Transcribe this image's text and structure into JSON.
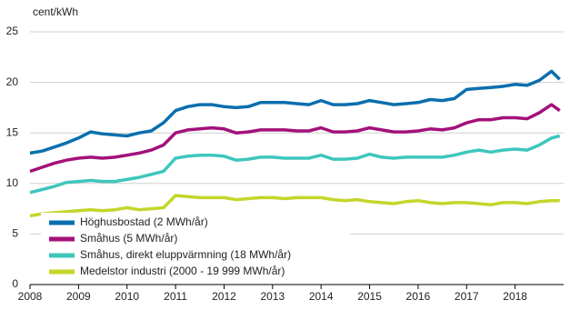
{
  "chart_data": {
    "type": "line",
    "y_label": "cent/kWh",
    "x": [
      2008,
      2008.25,
      2008.5,
      2008.75,
      2009,
      2009.25,
      2009.5,
      2009.75,
      2010,
      2010.25,
      2010.5,
      2010.75,
      2011,
      2011.25,
      2011.5,
      2011.75,
      2012,
      2012.25,
      2012.5,
      2012.75,
      2013,
      2013.25,
      2013.5,
      2013.75,
      2014,
      2014.25,
      2014.5,
      2014.75,
      2015,
      2015.25,
      2015.5,
      2015.75,
      2016,
      2016.25,
      2016.5,
      2016.75,
      2017,
      2017.25,
      2017.5,
      2017.75,
      2018,
      2018.25,
      2018.5,
      2018.75,
      2018.92
    ],
    "series": [
      {
        "name": "Höghusbostad (2 MWh/år)",
        "color": "#0a6fae",
        "values": [
          13.0,
          13.2,
          13.6,
          14.0,
          14.5,
          15.1,
          14.9,
          14.8,
          14.7,
          15.0,
          15.2,
          16.0,
          17.2,
          17.6,
          17.8,
          17.8,
          17.6,
          17.5,
          17.6,
          18.0,
          18.0,
          18.0,
          17.9,
          17.8,
          18.2,
          17.8,
          17.8,
          17.9,
          18.2,
          18.0,
          17.8,
          17.9,
          18.0,
          18.3,
          18.2,
          18.4,
          19.3,
          19.4,
          19.5,
          19.6,
          19.8,
          19.7,
          20.2,
          21.1,
          20.3
        ]
      },
      {
        "name": "Småhus (5 MWh/år)",
        "color": "#a3117a",
        "values": [
          11.2,
          11.6,
          12.0,
          12.3,
          12.5,
          12.6,
          12.5,
          12.6,
          12.8,
          13.0,
          13.3,
          13.8,
          15.0,
          15.3,
          15.4,
          15.5,
          15.4,
          15.0,
          15.1,
          15.3,
          15.3,
          15.3,
          15.2,
          15.2,
          15.5,
          15.1,
          15.1,
          15.2,
          15.5,
          15.3,
          15.1,
          15.1,
          15.2,
          15.4,
          15.3,
          15.5,
          16.0,
          16.3,
          16.3,
          16.5,
          16.5,
          16.4,
          17.0,
          17.8,
          17.2
        ]
      },
      {
        "name": "Småhus, direkt eluppvärmning (18 MWh/år)",
        "color": "#3ec6bd",
        "values": [
          9.1,
          9.4,
          9.7,
          10.1,
          10.2,
          10.3,
          10.2,
          10.2,
          10.4,
          10.6,
          10.9,
          11.2,
          12.5,
          12.7,
          12.8,
          12.8,
          12.7,
          12.3,
          12.4,
          12.6,
          12.6,
          12.5,
          12.5,
          12.5,
          12.8,
          12.4,
          12.4,
          12.5,
          12.9,
          12.6,
          12.5,
          12.6,
          12.6,
          12.6,
          12.6,
          12.8,
          13.1,
          13.3,
          13.1,
          13.3,
          13.4,
          13.3,
          13.8,
          14.5,
          14.7
        ]
      },
      {
        "name": "Medelstor industri (2000 - 19 999 MWh/år)",
        "color": "#c4d62b",
        "values": [
          6.8,
          7.0,
          7.1,
          7.2,
          7.3,
          7.4,
          7.3,
          7.4,
          7.6,
          7.4,
          7.5,
          7.6,
          8.8,
          8.7,
          8.6,
          8.6,
          8.6,
          8.4,
          8.5,
          8.6,
          8.6,
          8.5,
          8.6,
          8.6,
          8.6,
          8.4,
          8.3,
          8.4,
          8.2,
          8.1,
          8.0,
          8.2,
          8.3,
          8.1,
          8.0,
          8.1,
          8.1,
          8.0,
          7.9,
          8.1,
          8.1,
          8.0,
          8.2,
          8.3,
          8.3
        ]
      }
    ],
    "xlim": [
      2008,
      2019
    ],
    "xticks": [
      2008,
      2009,
      2010,
      2011,
      2012,
      2013,
      2014,
      2015,
      2016,
      2017,
      2018
    ],
    "ylim": [
      0,
      25
    ],
    "yticks": [
      0,
      5,
      10,
      15,
      20,
      25
    ],
    "grid": true
  }
}
